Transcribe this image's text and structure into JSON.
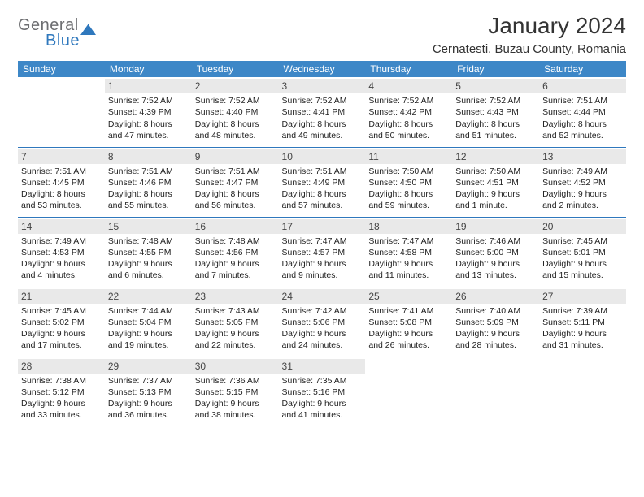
{
  "brand": {
    "part1": "General",
    "part2": "Blue"
  },
  "title": "January 2024",
  "location": "Cernatesti, Buzau County, Romania",
  "colors": {
    "header_bg": "#3d87c7",
    "rule": "#2f78bd",
    "daynum_bg": "#e9e9e9",
    "text": "#222222"
  },
  "typography": {
    "title_fontsize": 28,
    "location_fontsize": 15,
    "header_fontsize": 12,
    "cell_fontsize": 10.5
  },
  "layout": {
    "columns": 7,
    "rows": 5,
    "start_weekday": "Sunday",
    "first_day_column_index": 1
  },
  "weekdays": [
    "Sunday",
    "Monday",
    "Tuesday",
    "Wednesday",
    "Thursday",
    "Friday",
    "Saturday"
  ],
  "days": [
    {
      "n": 1,
      "sunrise": "7:52 AM",
      "sunset": "4:39 PM",
      "daylight": "8 hours and 47 minutes."
    },
    {
      "n": 2,
      "sunrise": "7:52 AM",
      "sunset": "4:40 PM",
      "daylight": "8 hours and 48 minutes."
    },
    {
      "n": 3,
      "sunrise": "7:52 AM",
      "sunset": "4:41 PM",
      "daylight": "8 hours and 49 minutes."
    },
    {
      "n": 4,
      "sunrise": "7:52 AM",
      "sunset": "4:42 PM",
      "daylight": "8 hours and 50 minutes."
    },
    {
      "n": 5,
      "sunrise": "7:52 AM",
      "sunset": "4:43 PM",
      "daylight": "8 hours and 51 minutes."
    },
    {
      "n": 6,
      "sunrise": "7:51 AM",
      "sunset": "4:44 PM",
      "daylight": "8 hours and 52 minutes."
    },
    {
      "n": 7,
      "sunrise": "7:51 AM",
      "sunset": "4:45 PM",
      "daylight": "8 hours and 53 minutes."
    },
    {
      "n": 8,
      "sunrise": "7:51 AM",
      "sunset": "4:46 PM",
      "daylight": "8 hours and 55 minutes."
    },
    {
      "n": 9,
      "sunrise": "7:51 AM",
      "sunset": "4:47 PM",
      "daylight": "8 hours and 56 minutes."
    },
    {
      "n": 10,
      "sunrise": "7:51 AM",
      "sunset": "4:49 PM",
      "daylight": "8 hours and 57 minutes."
    },
    {
      "n": 11,
      "sunrise": "7:50 AM",
      "sunset": "4:50 PM",
      "daylight": "8 hours and 59 minutes."
    },
    {
      "n": 12,
      "sunrise": "7:50 AM",
      "sunset": "4:51 PM",
      "daylight": "9 hours and 1 minute."
    },
    {
      "n": 13,
      "sunrise": "7:49 AM",
      "sunset": "4:52 PM",
      "daylight": "9 hours and 2 minutes."
    },
    {
      "n": 14,
      "sunrise": "7:49 AM",
      "sunset": "4:53 PM",
      "daylight": "9 hours and 4 minutes."
    },
    {
      "n": 15,
      "sunrise": "7:48 AM",
      "sunset": "4:55 PM",
      "daylight": "9 hours and 6 minutes."
    },
    {
      "n": 16,
      "sunrise": "7:48 AM",
      "sunset": "4:56 PM",
      "daylight": "9 hours and 7 minutes."
    },
    {
      "n": 17,
      "sunrise": "7:47 AM",
      "sunset": "4:57 PM",
      "daylight": "9 hours and 9 minutes."
    },
    {
      "n": 18,
      "sunrise": "7:47 AM",
      "sunset": "4:58 PM",
      "daylight": "9 hours and 11 minutes."
    },
    {
      "n": 19,
      "sunrise": "7:46 AM",
      "sunset": "5:00 PM",
      "daylight": "9 hours and 13 minutes."
    },
    {
      "n": 20,
      "sunrise": "7:45 AM",
      "sunset": "5:01 PM",
      "daylight": "9 hours and 15 minutes."
    },
    {
      "n": 21,
      "sunrise": "7:45 AM",
      "sunset": "5:02 PM",
      "daylight": "9 hours and 17 minutes."
    },
    {
      "n": 22,
      "sunrise": "7:44 AM",
      "sunset": "5:04 PM",
      "daylight": "9 hours and 19 minutes."
    },
    {
      "n": 23,
      "sunrise": "7:43 AM",
      "sunset": "5:05 PM",
      "daylight": "9 hours and 22 minutes."
    },
    {
      "n": 24,
      "sunrise": "7:42 AM",
      "sunset": "5:06 PM",
      "daylight": "9 hours and 24 minutes."
    },
    {
      "n": 25,
      "sunrise": "7:41 AM",
      "sunset": "5:08 PM",
      "daylight": "9 hours and 26 minutes."
    },
    {
      "n": 26,
      "sunrise": "7:40 AM",
      "sunset": "5:09 PM",
      "daylight": "9 hours and 28 minutes."
    },
    {
      "n": 27,
      "sunrise": "7:39 AM",
      "sunset": "5:11 PM",
      "daylight": "9 hours and 31 minutes."
    },
    {
      "n": 28,
      "sunrise": "7:38 AM",
      "sunset": "5:12 PM",
      "daylight": "9 hours and 33 minutes."
    },
    {
      "n": 29,
      "sunrise": "7:37 AM",
      "sunset": "5:13 PM",
      "daylight": "9 hours and 36 minutes."
    },
    {
      "n": 30,
      "sunrise": "7:36 AM",
      "sunset": "5:15 PM",
      "daylight": "9 hours and 38 minutes."
    },
    {
      "n": 31,
      "sunrise": "7:35 AM",
      "sunset": "5:16 PM",
      "daylight": "9 hours and 41 minutes."
    }
  ],
  "labels": {
    "sunrise_prefix": "Sunrise: ",
    "sunset_prefix": "Sunset: ",
    "daylight_prefix": "Daylight: "
  }
}
